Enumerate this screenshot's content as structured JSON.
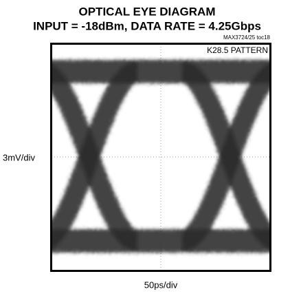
{
  "chart_data": {
    "type": "eye-diagram",
    "title": "OPTICAL EYE DIAGRAM",
    "subtitle": "INPUT = -18dBm, DATA RATE = 4.25Gbps",
    "note": "MAX3724/25 toc18",
    "annotation": "K28.5 PATTERN",
    "ylabel": "3mV/div",
    "xlabel": "50ps/div"
  }
}
